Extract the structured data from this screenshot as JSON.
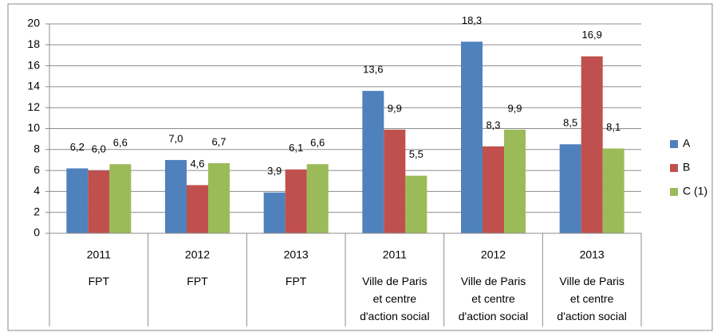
{
  "chart_data": {
    "type": "bar",
    "categories": [
      "2011",
      "2012",
      "2013",
      "2011",
      "2012",
      "2013"
    ],
    "category_groups": [
      "FPT",
      "FPT",
      "FPT",
      "Ville de Paris et centre d'action social",
      "Ville de Paris et centre d'action social",
      "Ville de Paris et centre d'action social"
    ],
    "series": [
      {
        "name": "A",
        "color": "#4f81bd",
        "values": [
          6.2,
          7.0,
          3.9,
          13.6,
          18.3,
          8.5
        ],
        "value_labels": [
          "6,2",
          "7,0",
          "3,9",
          "13,6",
          "18,3",
          "8,5"
        ]
      },
      {
        "name": "B",
        "color": "#c0504d",
        "values": [
          6.0,
          4.6,
          6.1,
          9.9,
          8.3,
          16.9
        ],
        "value_labels": [
          "6,0",
          "4,6",
          "6,1",
          "9,9",
          "8,3",
          "16,9"
        ]
      },
      {
        "name": "C (1)",
        "color": "#9bbb59",
        "values": [
          6.6,
          6.7,
          6.6,
          5.5,
          9.9,
          8.1
        ],
        "value_labels": [
          "6,6",
          "6,7",
          "6,6",
          "5,5",
          "9,9",
          "8,1"
        ]
      }
    ],
    "ylim": [
      0,
      20
    ],
    "yticks": [
      0,
      2,
      4,
      6,
      8,
      10,
      12,
      14,
      16,
      18,
      20
    ],
    "grid": true,
    "legend": "right"
  }
}
